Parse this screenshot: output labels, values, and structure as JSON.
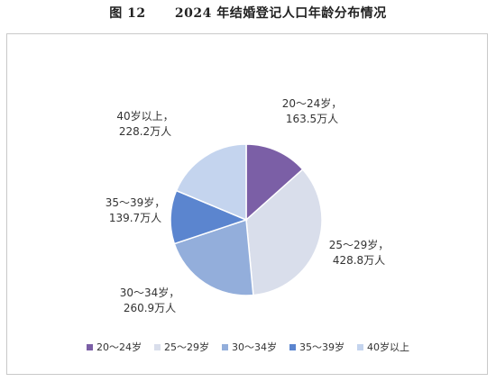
{
  "figure": {
    "number": "图 12",
    "title": "2024 年结婚登记人口年龄分布情况"
  },
  "chart_data": {
    "type": "pie",
    "title": "2024 年结婚登记人口年龄分布情况",
    "unit": "万人",
    "slices": [
      {
        "name": "20～24岁",
        "value": 163.5,
        "label_name": "20～24岁，",
        "label_value": "163.5万人",
        "color": "#7b5fa6"
      },
      {
        "name": "25～29岁",
        "value": 428.8,
        "label_name": "25～29岁，",
        "label_value": "428.8万人",
        "color": "#d9deeb"
      },
      {
        "name": "30～34岁",
        "value": 260.9,
        "label_name": "30～34岁，",
        "label_value": "260.9万人",
        "color": "#93aedb"
      },
      {
        "name": "35～39岁",
        "value": 139.7,
        "label_name": "35～39岁，",
        "label_value": "139.7万人",
        "color": "#5b85cf"
      },
      {
        "name": "40岁以上",
        "value": 228.2,
        "label_name": "40岁以上，",
        "label_value": "228.2万人",
        "color": "#c4d4ee"
      }
    ],
    "legend_position": "bottom"
  }
}
